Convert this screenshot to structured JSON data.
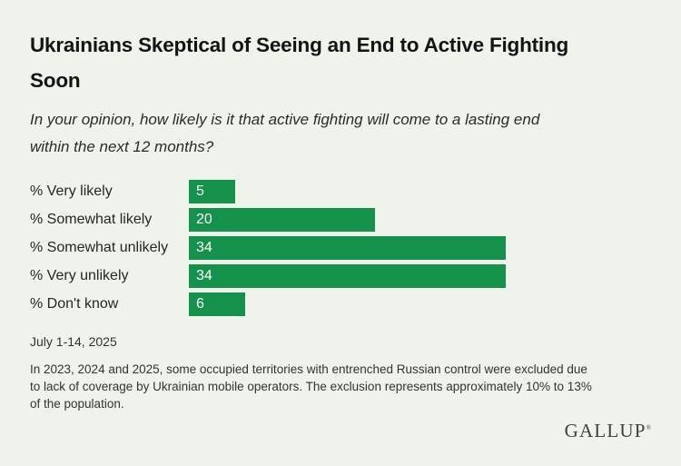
{
  "title": {
    "full": "Ukrainians Skeptical of Seeing an End to Active Fighting Soon",
    "lines": [
      "Ukrainians Skeptical of Seeing an End to Active Fighting",
      "Soon"
    ]
  },
  "subtitle": {
    "full": "In your opinion, how likely is it that active fighting will come to a lasting end within the next 12 months?",
    "lines": [
      "In your opinion, how likely is it that active fighting will come to a lasting end",
      "within the next 12 months?"
    ]
  },
  "chart_data": {
    "type": "bar",
    "orientation": "horizontal",
    "title": "Ukrainians Skeptical of Seeing an End to Active Fighting Soon",
    "subtitle": "In your opinion, how likely is it that active fighting will come to a lasting end within the next 12 months?",
    "categories": [
      "% Very likely",
      "% Somewhat likely",
      "% Somewhat unlikely",
      "% Very unlikely",
      "% Don't know"
    ],
    "values": [
      5,
      20,
      34,
      34,
      6
    ],
    "value_unit": "%",
    "xlabel": "",
    "ylabel": "",
    "xlim": [
      0,
      50
    ],
    "grid": false,
    "legend": false,
    "value_labels": "inside-left",
    "bar_color": "#14914a"
  },
  "date_note": "July 1-14, 2025",
  "footnote": {
    "full": "In 2023, 2024 and 2025, some occupied territories with entrenched Russian control were excluded due to lack of coverage by Ukrainian mobile operators. The exclusion represents approximately 10% to 13% of the population.",
    "lines": [
      "In 2023, 2024 and 2025, some occupied territories with entrenched Russian control were excluded due",
      "to lack of coverage by Ukrainian mobile operators. The exclusion represents approximately 10% to 13%",
      "of the population."
    ]
  },
  "logo": {
    "text": "GALLUP",
    "mark": "®"
  },
  "colors": {
    "background": "#eef3ec",
    "bar_green": "#14914a",
    "bar_value_text": "#ffffff",
    "title_text": "#141414",
    "body_text": "#2b2b2b",
    "footnote_text": "#333333",
    "logo_text": "#404040"
  }
}
